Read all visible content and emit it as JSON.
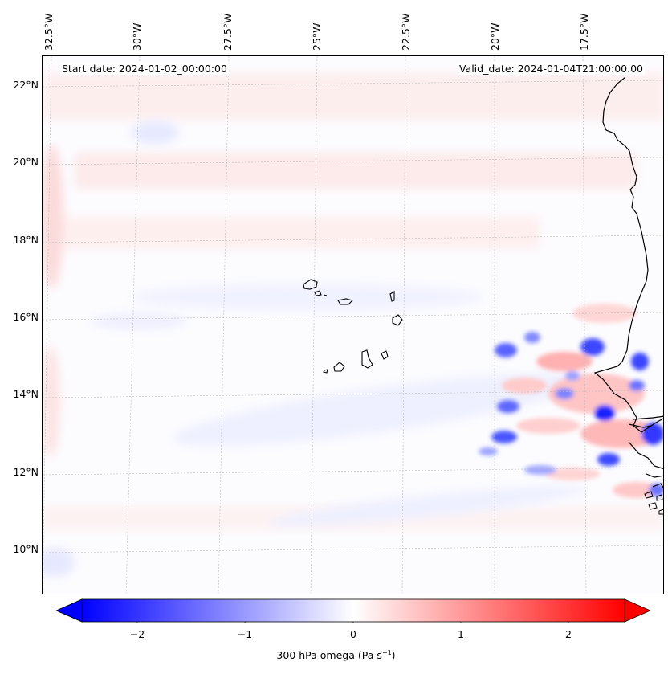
{
  "header": {
    "start_date": "Start date: 2024-01-02_00:00:00",
    "valid_date": "Valid_date: 2024-01-04T21:00:00.00"
  },
  "map": {
    "longitude_labels": [
      "32.5°W",
      "30°W",
      "27.5°W",
      "25°W",
      "22.5°W",
      "20°W",
      "17.5°W"
    ],
    "latitude_labels": [
      "22°N",
      "20°N",
      "18°N",
      "16°N",
      "14°N",
      "12°N",
      "10°N"
    ],
    "field": "300 hPa omega",
    "region": "Cape Verde Islands and West African coast (Senegal, Gambia, Guinea-Bissau)"
  },
  "colorbar": {
    "label_main": "300 hPa omega (Pa s",
    "label_exponent": "−1",
    "label_close": ")",
    "tick_labels": [
      "−2",
      "−1",
      "0",
      "1",
      "2"
    ],
    "min": -2.7,
    "max": 2.7,
    "low_color": "#0000ff",
    "mid_color": "#ffffff",
    "high_color": "#ff0000"
  }
}
